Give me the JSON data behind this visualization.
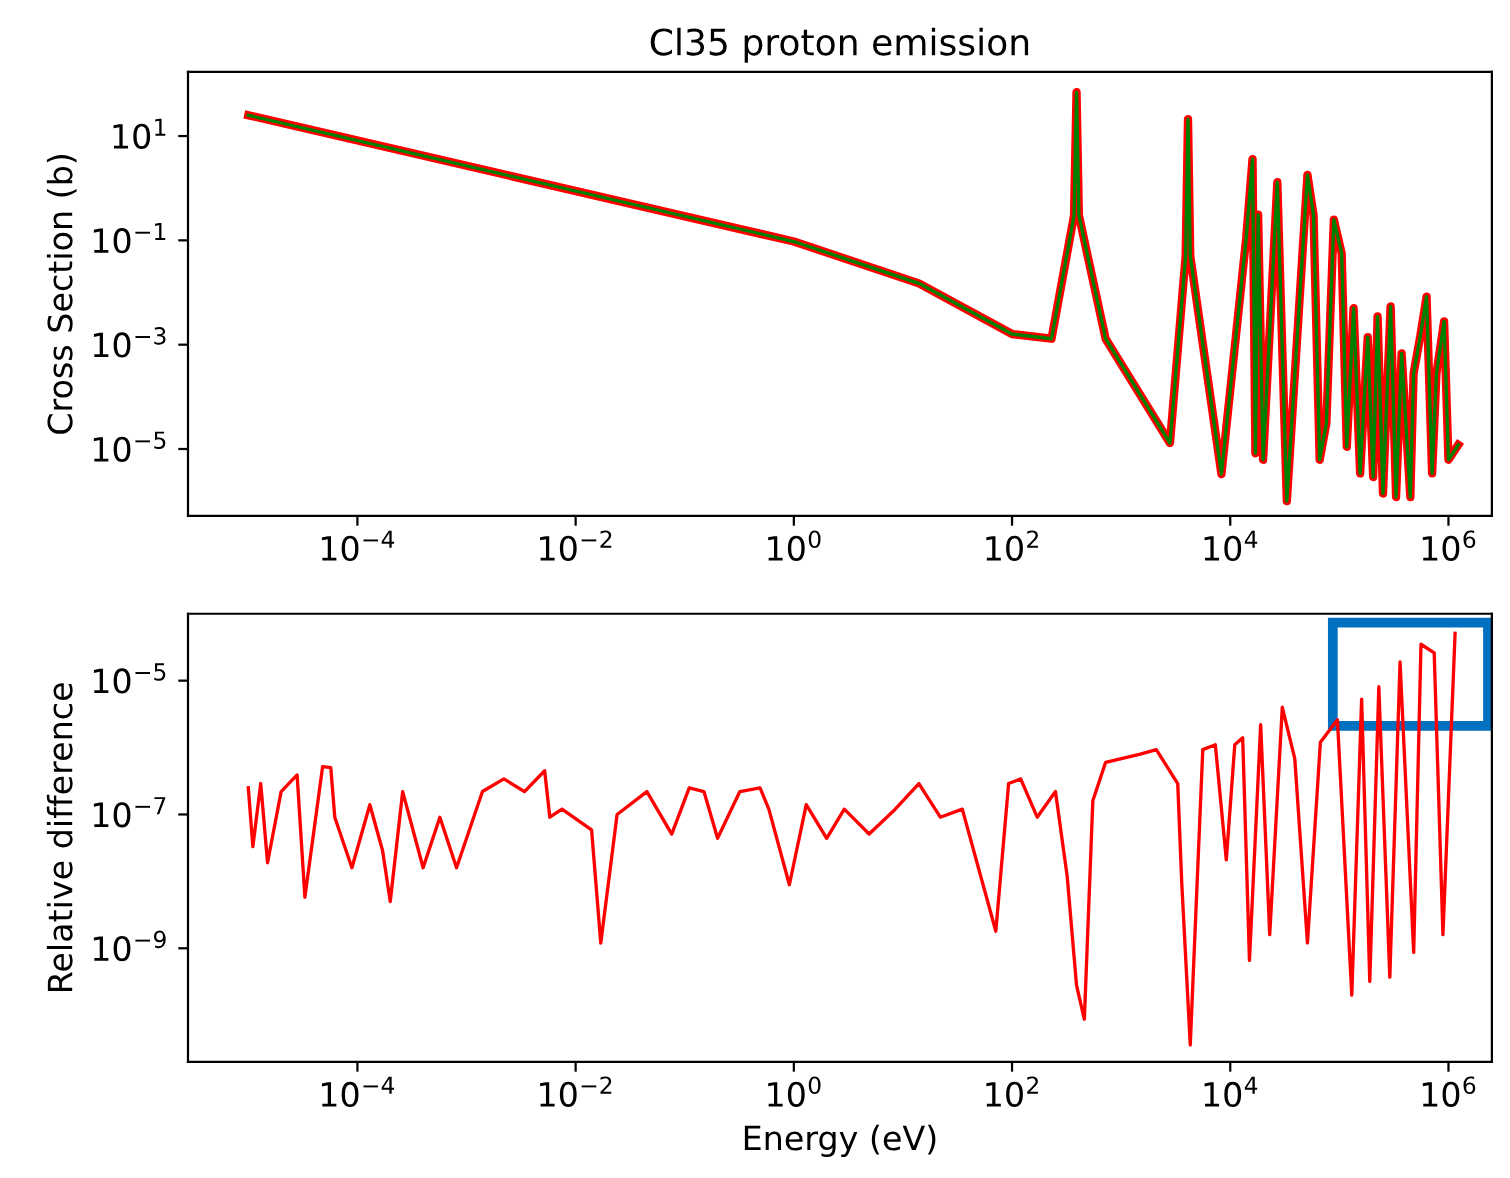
{
  "chart_data": [
    {
      "type": "line",
      "title": "Cl35 proton emission",
      "ylabel": "Cross Section (b)",
      "log": "xy",
      "xlim": [
        2.8e-06,
        2500000.0
      ],
      "ylim": [
        5.2e-07,
        170
      ],
      "xticks": [
        {
          "value": 0.0001,
          "label": "10$^{−4}$"
        },
        {
          "value": 0.01,
          "label": "10$^{−2}$"
        },
        {
          "value": 1,
          "label": "10$^{0}$"
        },
        {
          "value": 100,
          "label": "10$^{2}$"
        },
        {
          "value": 10000,
          "label": "10$^{4}$"
        },
        {
          "value": 1000000,
          "label": "10$^{6}$"
        }
      ],
      "yticks": [
        {
          "value": 10,
          "label": "10$^{1}$"
        },
        {
          "value": 0.1,
          "label": "10$^{−1}$"
        },
        {
          "value": 0.001,
          "label": "10$^{−3}$"
        },
        {
          "value": 1e-05,
          "label": "10$^{−5}$"
        }
      ],
      "x": [
        1e-05,
        1,
        14,
        100,
        230,
        370,
        390,
        410,
        720,
        2800,
        3900,
        4100,
        4300,
        8300,
        14000,
        16000,
        17000,
        18000,
        20000,
        27000,
        33000,
        51000,
        58000,
        66000,
        76000,
        89000,
        105000,
        117000,
        135000,
        155000,
        182000,
        204000,
        224000,
        251000,
        295000,
        331000,
        372000,
        447000,
        479000,
        550000,
        630000,
        708000,
        776000,
        912000,
        1000000,
        1230000
      ],
      "series": [
        {
          "color": "#ff0000",
          "values": [
            25,
            0.095,
            0.015,
            0.0016,
            0.0013,
            0.3,
            69,
            0.3,
            0.0013,
            1.3e-05,
            0.05,
            21,
            0.05,
            3.3e-06,
            0.11,
            3.6,
            8.3e-06,
            0.31,
            6.2e-06,
            1.3,
            1e-06,
            1.8,
            0.3,
            6.2e-06,
            3.1e-05,
            0.25,
            0.056,
            1.1e-05,
            0.005,
            3.4e-06,
            0.0014,
            2.9e-06,
            0.0035,
            1.4e-06,
            0.0054,
            1.2e-06,
            0.00068,
            1.2e-06,
            0.00028,
            0.0014,
            0.0083,
            3.4e-06,
            0.00028,
            0.0028,
            6.2e-06,
            1.2e-05
          ]
        },
        {
          "color": "#008000",
          "values": [
            25,
            0.095,
            0.015,
            0.0016,
            0.0013,
            0.3,
            69,
            0.3,
            0.0013,
            1.3e-05,
            0.05,
            21,
            0.05,
            3.3e-06,
            0.11,
            3.6,
            8.3e-06,
            0.31,
            6.2e-06,
            1.3,
            1e-06,
            1.8,
            0.3,
            6.2e-06,
            3.1e-05,
            0.25,
            0.056,
            1.1e-05,
            0.005,
            3.4e-06,
            0.0014,
            2.9e-06,
            0.0035,
            1.4e-06,
            0.0054,
            1.2e-06,
            0.00068,
            1.2e-06,
            0.00028,
            0.0014,
            0.0083,
            3.4e-06,
            0.00028,
            0.0028,
            6.2e-06,
            1.2e-05
          ]
        }
      ]
    },
    {
      "type": "line",
      "xlabel": "Energy (eV)",
      "ylabel": "Relative difference",
      "log": "xy",
      "xlim": [
        2.8e-06,
        2500000.0
      ],
      "ylim": [
        2e-11,
        0.0001
      ],
      "xticks": [
        {
          "value": 0.0001,
          "label": "10$^{−4}$"
        },
        {
          "value": 0.01,
          "label": "10$^{−2}$"
        },
        {
          "value": 1,
          "label": "10$^{0}$"
        },
        {
          "value": 100,
          "label": "10$^{2}$"
        },
        {
          "value": 10000,
          "label": "10$^{4}$"
        },
        {
          "value": 1000000,
          "label": "10$^{6}$"
        }
      ],
      "yticks": [
        {
          "value": 1e-05,
          "label": "10$^{−5}$"
        },
        {
          "value": 1e-07,
          "label": "10$^{−7}$"
        },
        {
          "value": 1e-09,
          "label": "10$^{−9}$"
        }
      ],
      "x": [
        1e-05,
        1.1e-05,
        1.3e-05,
        1.5e-05,
        2e-05,
        2.8e-05,
        3.3e-05,
        4.8e-05,
        5.7e-05,
        6.2e-05,
        8.9e-05,
        0.00013,
        0.00017,
        0.0002,
        0.00026,
        0.0004,
        0.00057,
        0.00081,
        0.0014,
        0.0022,
        0.0034,
        0.0052,
        0.0058,
        0.0075,
        0.014,
        0.017,
        0.024,
        0.045,
        0.076,
        0.11,
        0.15,
        0.2,
        0.32,
        0.49,
        0.59,
        0.91,
        1.3,
        2,
        2.9,
        4.9,
        8.5,
        14,
        22,
        35,
        71,
        93,
        120,
        170,
        250,
        320,
        390,
        460,
        550,
        720,
        1500,
        2100,
        3300,
        3600,
        4300,
        5600,
        7300,
        9200,
        11000,
        13000,
        15000,
        19000,
        23000,
        30000,
        39000,
        51000,
        67000,
        96000,
        130000,
        160000,
        190000,
        230000,
        290000,
        360000,
        480000,
        560000,
        740000,
        890000,
        1150000
      ],
      "series": [
        {
          "color": "#ff0000",
          "values": [
            2.5e-07,
            3.3e-08,
            2.9e-07,
            1.9e-08,
            2.2e-07,
            3.9e-07,
            5.8e-09,
            5.2e-07,
            5e-07,
            9.1e-08,
            1.6e-08,
            1.4e-07,
            2.9e-08,
            5e-09,
            2.2e-07,
            1.6e-08,
            9.1e-08,
            1.6e-08,
            2.2e-07,
            3.4e-07,
            2.2e-07,
            4.5e-07,
            9.1e-08,
            1.2e-07,
            5.9e-08,
            1.2e-09,
            1e-07,
            2.2e-07,
            5.1e-08,
            2.5e-07,
            2.2e-07,
            4.4e-08,
            2.2e-07,
            2.5e-07,
            1.2e-07,
            8.9e-09,
            1.4e-07,
            4.4e-08,
            1.2e-07,
            5.1e-08,
            1.2e-07,
            2.9e-07,
            9.1e-08,
            1.2e-07,
            1.8e-09,
            2.9e-07,
            3.4e-07,
            9.1e-08,
            2.2e-07,
            1.2e-08,
            2.8e-10,
            8.7e-11,
            1.6e-07,
            6e-07,
            8e-07,
            9.3e-07,
            2.9e-07,
            8.9e-09,
            3.6e-11,
            9.3e-07,
            1.1e-06,
            2.1e-08,
            1.1e-06,
            1.4e-06,
            6.6e-10,
            2.2e-06,
            1.6e-09,
            4e-06,
            6.9e-07,
            1.2e-09,
            1.2e-06,
            2.6e-06,
            2e-10,
            5.3e-06,
            3.2e-10,
            8.1e-06,
            3.7e-10,
            1.9e-05,
            8.7e-10,
            3.5e-05,
            2.6e-05,
            1.6e-09,
            5.1e-05
          ]
        }
      ]
    }
  ]
}
